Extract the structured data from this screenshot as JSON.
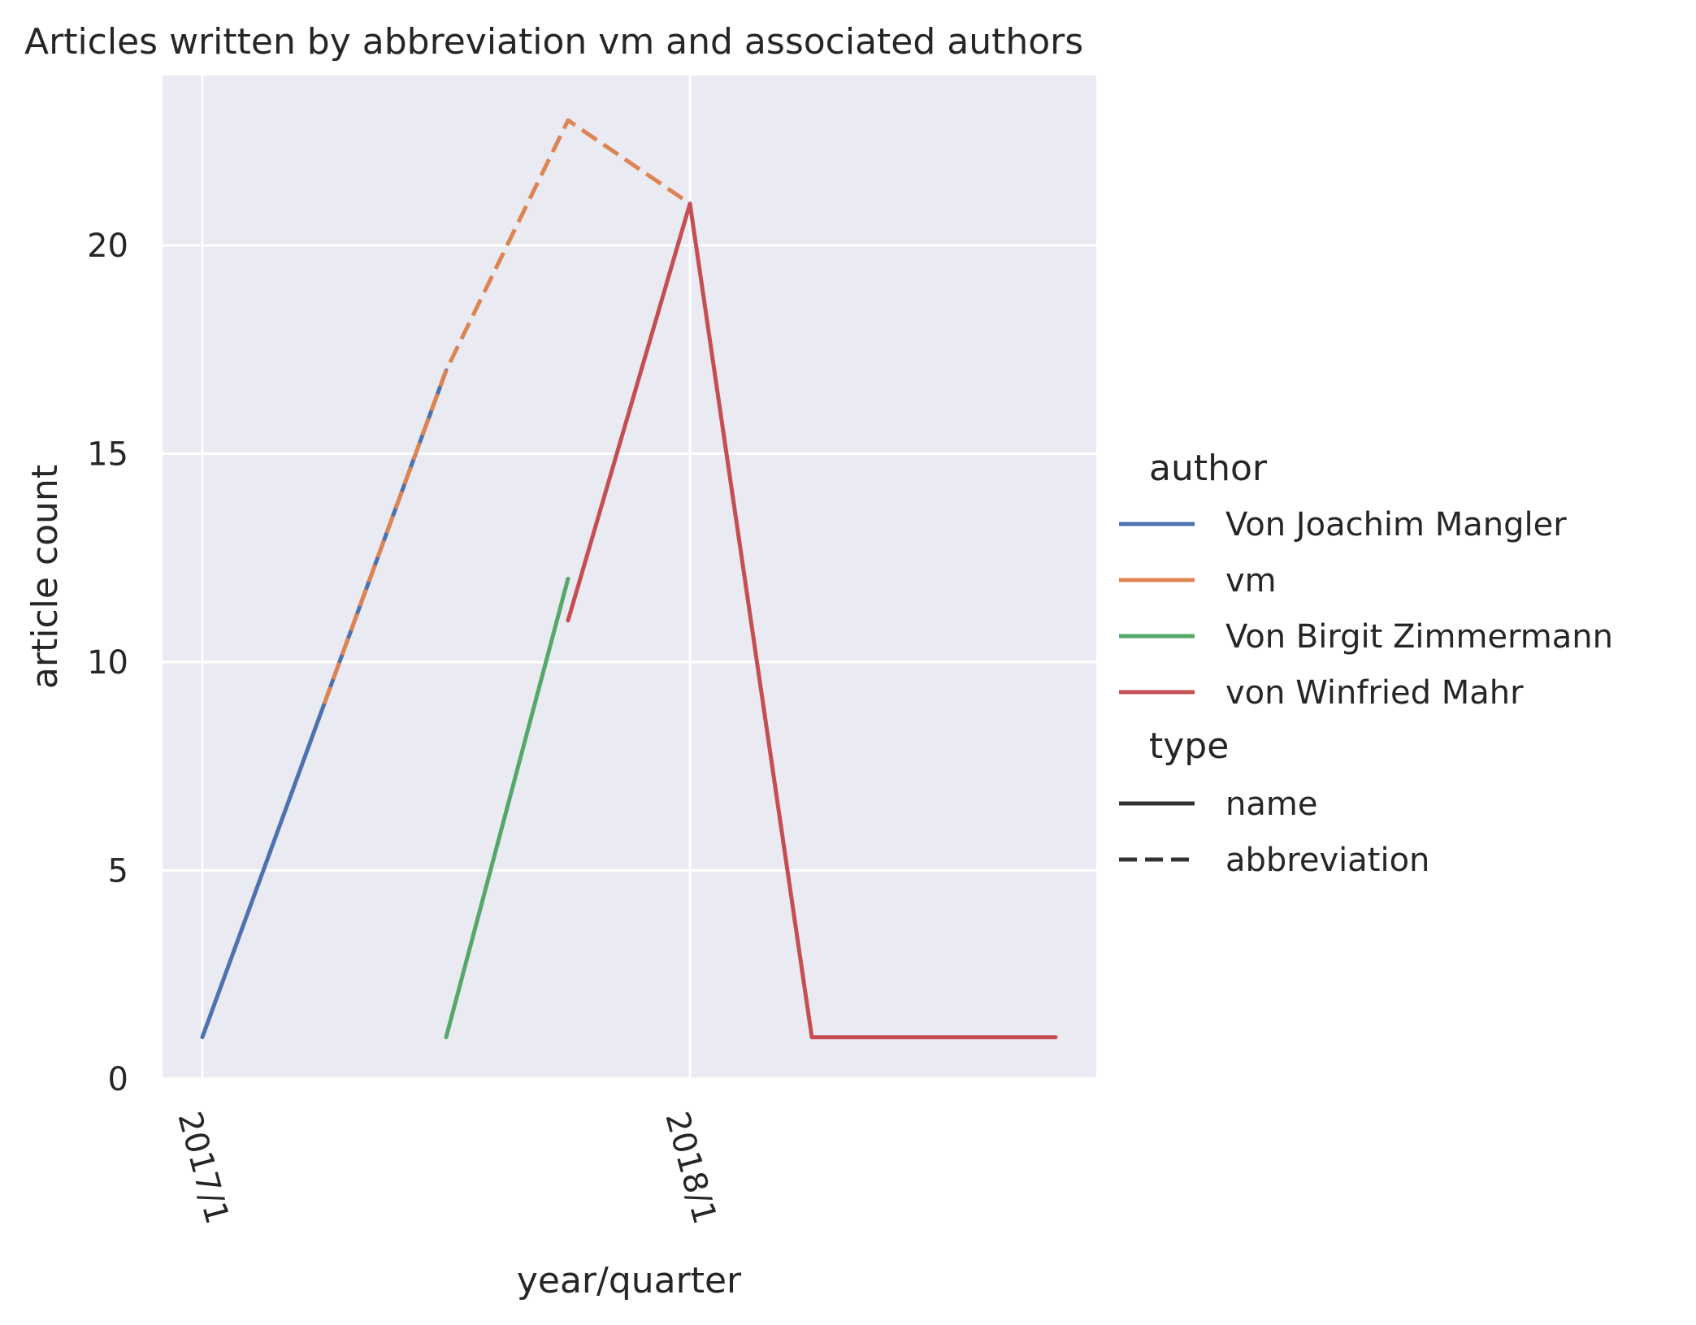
{
  "chart_data": {
    "type": "line",
    "title": "Articles written by abbreviation vm and associated authors",
    "xlabel": "year/quarter",
    "ylabel": "article count",
    "x_categories": [
      "2017/1",
      "2017/2",
      "2017/3",
      "2017/4",
      "2018/1",
      "2018/2",
      "2018/3",
      "2018/4"
    ],
    "x_tick_labels": [
      {
        "category": "2017/1",
        "text": "2017/1"
      },
      {
        "category": "2018/1",
        "text": "2018/1"
      }
    ],
    "ylim": [
      0,
      24
    ],
    "y_ticks": [
      0,
      5,
      10,
      15,
      20
    ],
    "grid": true,
    "legend_position": "right",
    "series": [
      {
        "name": "Von Joachim Mangler",
        "type": "name",
        "color": "#4c72b0",
        "dashed": false,
        "x": [
          "2017/1",
          "2017/2",
          "2017/3"
        ],
        "y": [
          1,
          9,
          17
        ]
      },
      {
        "name": "vm",
        "type": "abbreviation",
        "color": "#dd8452",
        "dashed": true,
        "x": [
          "2017/2",
          "2017/3",
          "2017/4",
          "2018/1"
        ],
        "y": [
          9,
          17,
          23,
          21
        ]
      },
      {
        "name": "Von Birgit Zimmermann",
        "type": "name",
        "color": "#55a868",
        "dashed": false,
        "x": [
          "2017/3",
          "2017/4"
        ],
        "y": [
          1,
          12
        ]
      },
      {
        "name": "von Winfried Mahr",
        "type": "name",
        "color": "#c44e52",
        "dashed": false,
        "x": [
          "2017/4",
          "2018/1",
          "2018/2",
          "2018/3",
          "2018/4"
        ],
        "y": [
          11,
          21,
          1,
          1,
          1
        ]
      }
    ],
    "legend": {
      "author_title": "author",
      "authors": [
        {
          "label": "Von Joachim Mangler",
          "color": "#4c72b0"
        },
        {
          "label": "vm",
          "color": "#dd8452"
        },
        {
          "label": "Von Birgit Zimmermann",
          "color": "#55a868"
        },
        {
          "label": "von Winfried Mahr",
          "color": "#c44e52"
        }
      ],
      "type_title": "type",
      "types": [
        {
          "label": "name",
          "dashed": false
        },
        {
          "label": "abbreviation",
          "dashed": true
        }
      ]
    }
  }
}
